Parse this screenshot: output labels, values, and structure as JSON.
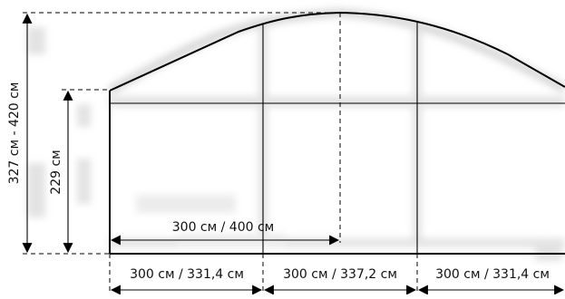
{
  "diagram": {
    "overall_height_label": "327 см - 420 см",
    "wall_height_label": "229 см",
    "half_span_label": "300 см / 400 см",
    "bottom_segments": [
      {
        "label": "300 см / 331,4 см"
      },
      {
        "label": "300 см / 337,2 см"
      },
      {
        "label": "300 см / 331,4 см"
      }
    ],
    "colors": {
      "stroke": "#000000",
      "background": "#ffffff",
      "ghost": "#d0d0d0"
    }
  }
}
